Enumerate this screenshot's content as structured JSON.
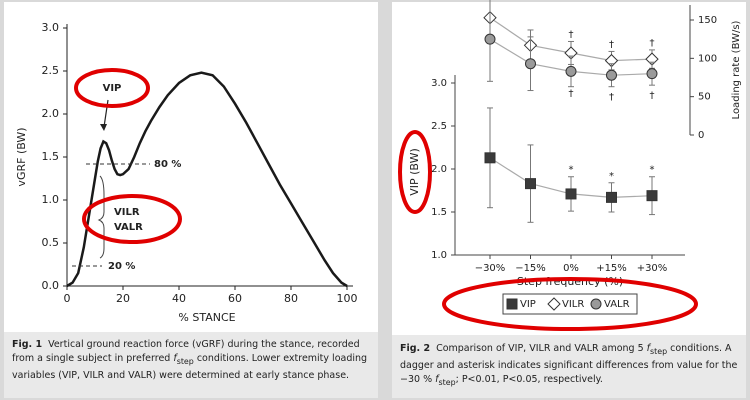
{
  "chart_data": [
    {
      "type": "line",
      "xlabel": "% STANCE",
      "ylabel": "vGRF (BW)",
      "x": [
        0,
        2,
        4,
        6,
        8,
        10,
        11,
        12,
        13,
        14,
        15,
        16,
        17,
        18,
        19,
        20,
        22,
        24,
        26,
        28,
        30,
        33,
        36,
        40,
        44,
        48,
        52,
        56,
        60,
        64,
        68,
        72,
        76,
        80,
        84,
        88,
        92,
        95,
        98,
        100
      ],
      "values": [
        0,
        0.04,
        0.15,
        0.45,
        0.85,
        1.25,
        1.45,
        1.6,
        1.68,
        1.66,
        1.58,
        1.46,
        1.36,
        1.3,
        1.29,
        1.3,
        1.36,
        1.5,
        1.66,
        1.8,
        1.92,
        2.08,
        2.22,
        2.36,
        2.45,
        2.48,
        2.45,
        2.32,
        2.12,
        1.9,
        1.66,
        1.42,
        1.18,
        0.96,
        0.74,
        0.52,
        0.3,
        0.15,
        0.04,
        0
      ],
      "color": "#1a1a1a",
      "xlim": [
        0,
        100
      ],
      "xticks": [
        0,
        20,
        40,
        60,
        80,
        100
      ],
      "ylim": [
        0,
        3
      ],
      "yticks": [
        {
          "value": 0,
          "label": "0.0"
        },
        {
          "value": 0.5,
          "label": "0.5"
        },
        {
          "value": 1,
          "label": "1.0"
        },
        {
          "value": 1.5,
          "label": "1.5"
        },
        {
          "value": 2,
          "label": "2.0"
        },
        {
          "value": 2.5,
          "label": "2.5"
        },
        {
          "value": 3,
          "label": "3.0"
        }
      ],
      "annotations": [
        "VIP",
        "VILR",
        "VALR",
        "80 %",
        "20 %"
      ]
    },
    {
      "type": "line",
      "xlabel": "Step frequency (%)",
      "ylabel": "VIP (BW)",
      "y2label": "Loading rate (BW/s)",
      "categories": [
        "−30%",
        "−15%",
        "0%",
        "+15%",
        "+30%"
      ],
      "ylim": [
        1,
        3
      ],
      "yticks": [
        {
          "value": 1,
          "label": "1.0"
        },
        {
          "value": 1.5,
          "label": "1.5"
        },
        {
          "value": 2,
          "label": "2.0"
        },
        {
          "value": 2.5,
          "label": "2.5"
        },
        {
          "value": 3,
          "label": "3.0"
        }
      ],
      "y2lim": [
        0,
        150
      ],
      "y2ticks": [
        0,
        50,
        100,
        150
      ],
      "series": [
        {
          "name": "VIP",
          "color": "#3a3a3a",
          "marker": "square",
          "values": [
            2.13,
            1.83,
            1.71,
            1.67,
            1.69
          ],
          "errors": [
            0.58,
            0.45,
            0.2,
            0.17,
            0.22
          ],
          "annotations": [
            null,
            null,
            "*",
            "*",
            "*"
          ]
        },
        {
          "name": "VILR",
          "color": "#ffffff",
          "marker": "diamond",
          "axis": "y2",
          "values": [
            153,
            117,
            107,
            97,
            99
          ],
          "errors": [
            25,
            20,
            15,
            12,
            12
          ],
          "annotations": [
            null,
            null,
            "†",
            "†",
            "†"
          ]
        },
        {
          "name": "VALR",
          "color": "#9a9a9a",
          "marker": "circle",
          "axis": "y2",
          "values": [
            125,
            93,
            83,
            78,
            80
          ],
          "errors": [
            55,
            35,
            20,
            15,
            15
          ],
          "annotations": [
            null,
            null,
            "†",
            "†",
            "†"
          ]
        }
      ]
    }
  ],
  "captions": [
    {
      "label": "Fig. 1",
      "text": [
        {
          "text": "Vertical ground reaction force (vGRF) during the stance, recorded from a single subject in preferred "
        },
        {
          "text": "f",
          "style": "italic"
        },
        {
          "text": "step",
          "style": "sub"
        },
        {
          "text": " conditions. Lower extremity loading variables (VIP, VILR and VALR) were determined at early stance phase."
        }
      ]
    },
    {
      "label": "Fig. 2",
      "text": [
        {
          "text": "Comparison of VIP, VILR and VALR among 5 "
        },
        {
          "text": "f",
          "style": "italic"
        },
        {
          "text": "step",
          "style": "sub"
        },
        {
          "text": " conditions. A dagger and asterisk indicates significant differences from value for the −30 % "
        },
        {
          "text": "f",
          "style": "italic"
        },
        {
          "text": "step",
          "style": "sub"
        },
        {
          "text": "; P<0.01, P<0.05, respectively."
        }
      ]
    }
  ]
}
